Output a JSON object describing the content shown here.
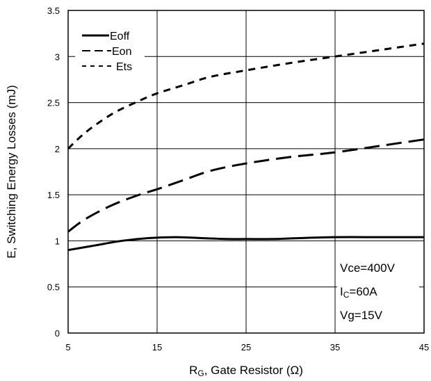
{
  "chart_data": {
    "type": "line",
    "xlabel": "RG, Gate Resistor (Ω)",
    "xlabel_main": "R",
    "xlabel_sub": "G",
    "xlabel_rest": ", Gate Resistor (Ω)",
    "ylabel": "E, Switching Energy Losses (mJ)",
    "xlim": [
      5,
      45
    ],
    "ylim": [
      0,
      3.5
    ],
    "x_ticks": [
      "5",
      "15",
      "25",
      "35",
      "45"
    ],
    "y_ticks": [
      "0",
      "0.5",
      "1",
      "1.5",
      "2",
      "2.5",
      "3",
      "3.5"
    ],
    "grid": true,
    "legend_position": "top-left",
    "series": [
      {
        "name": "Eoff",
        "style": "solid",
        "x": [
          5,
          8,
          11,
          14,
          17,
          20,
          23,
          25,
          28,
          31,
          35,
          40,
          45
        ],
        "y": [
          0.9,
          0.95,
          1.0,
          1.03,
          1.04,
          1.03,
          1.02,
          1.02,
          1.02,
          1.03,
          1.04,
          1.04,
          1.04
        ]
      },
      {
        "name": "Eon",
        "style": "long-dash",
        "x": [
          5,
          7,
          10,
          13,
          15,
          18,
          21,
          25,
          30,
          35,
          40,
          45
        ],
        "y": [
          1.1,
          1.24,
          1.39,
          1.5,
          1.56,
          1.66,
          1.76,
          1.84,
          1.91,
          1.96,
          2.03,
          2.1
        ]
      },
      {
        "name": "Ets",
        "style": "short-dash",
        "x": [
          5,
          7,
          10,
          13,
          15,
          18,
          21,
          25,
          30,
          35,
          40,
          45
        ],
        "y": [
          2.0,
          2.18,
          2.38,
          2.52,
          2.6,
          2.69,
          2.78,
          2.85,
          2.93,
          3.0,
          3.07,
          3.14
        ]
      }
    ],
    "annotations": {
      "vce": "Vce=400V",
      "ic_main": "I",
      "ic_sub": "C",
      "ic_rest": "=60A",
      "vg": "Vg=15V"
    }
  }
}
